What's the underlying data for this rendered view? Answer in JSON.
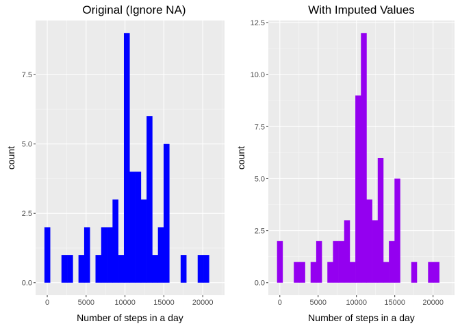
{
  "colors": {
    "panel_background": "#ebebeb",
    "grid_major": "#ffffff",
    "tick_color": "#333333",
    "text": "#000000",
    "tick_text": "#4d4d4d"
  },
  "chart_data": [
    {
      "type": "bar",
      "subtype": "histogram",
      "title": "Original (Ignore NA)",
      "xlabel": "Number of steps in a day",
      "ylabel": "count",
      "fill": "#0000ff",
      "xlim": [
        -1500,
        22800
      ],
      "ylim": [
        -0.45,
        9.45
      ],
      "x_ticks": [
        0,
        5000,
        10000,
        15000,
        20000
      ],
      "x_tick_labels": [
        "0",
        "5000",
        "10000",
        "15000",
        "20000"
      ],
      "y_ticks": [
        0,
        2.5,
        5,
        7.5
      ],
      "y_tick_labels": [
        "0.0",
        "2.5",
        "5.0",
        "7.5"
      ],
      "bins_start": -365,
      "bin_width": 730,
      "counts": [
        2,
        0,
        0,
        1,
        1,
        0,
        1,
        2,
        0,
        1,
        2,
        2,
        3,
        1,
        9,
        4,
        4,
        3,
        6,
        1,
        2,
        5,
        0,
        0,
        1,
        0,
        0,
        1,
        1
      ],
      "grid": true,
      "legend": "none"
    },
    {
      "type": "bar",
      "subtype": "histogram",
      "title": "With Imputed Values",
      "xlabel": "Number of steps in a day",
      "ylabel": "count",
      "fill": "#9400f0",
      "xlim": [
        -1500,
        22800
      ],
      "ylim": [
        -0.6,
        12.6
      ],
      "x_ticks": [
        0,
        5000,
        10000,
        15000,
        20000
      ],
      "x_tick_labels": [
        "0",
        "5000",
        "10000",
        "15000",
        "20000"
      ],
      "y_ticks": [
        0,
        2.5,
        5,
        7.5,
        10,
        12.5
      ],
      "y_tick_labels": [
        "0.0",
        "2.5",
        "5.0",
        "7.5",
        "10.0",
        "12.5"
      ],
      "bins_start": -365,
      "bin_width": 730,
      "counts": [
        2,
        0,
        0,
        1,
        1,
        0,
        1,
        2,
        0,
        1,
        2,
        2,
        3,
        1,
        9,
        12,
        4,
        3,
        6,
        1,
        2,
        5,
        0,
        0,
        1,
        0,
        0,
        1,
        1
      ],
      "grid": true,
      "legend": "none"
    }
  ]
}
